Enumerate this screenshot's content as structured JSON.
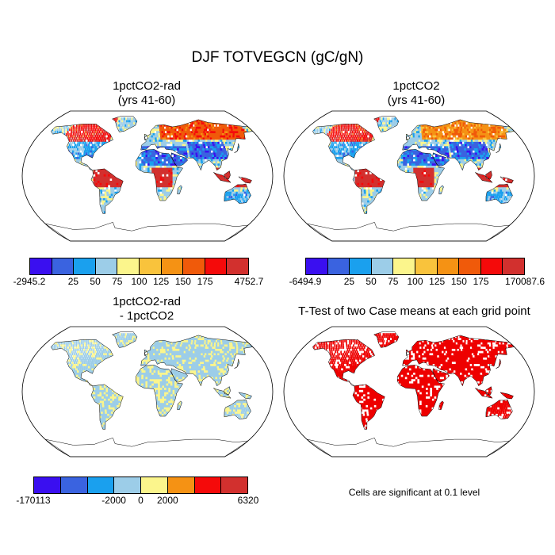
{
  "title": "DJF TOTVEGCN (gC/gN)",
  "colors": {
    "c10": [
      "#3a0ff0",
      "#3a63e0",
      "#1aa0ee",
      "#9ccde8",
      "#fbf58c",
      "#f9c33c",
      "#f59214",
      "#f05a0a",
      "#f50a0a",
      "#d2302e"
    ],
    "c8": [
      "#3a0ff0",
      "#3a63e0",
      "#1aa0ee",
      "#9ccde8",
      "#fbf58c",
      "#f59214",
      "#f50a0a",
      "#d2302e"
    ],
    "ocean": "#ffffff",
    "sig": "#ee0000"
  },
  "panels": [
    {
      "title1": "1pctCO2-rad",
      "title2": "(yrs 41-60)",
      "colorbar": {
        "labels": [
          "-2945.2",
          "25",
          "50",
          "75",
          "100",
          "125",
          "150",
          "175",
          "4752.7"
        ]
      }
    },
    {
      "title1": "1pctCO2",
      "title2": "(yrs 41-60)",
      "colorbar": {
        "labels": [
          "-6494.9",
          "25",
          "50",
          "75",
          "100",
          "125",
          "150",
          "175",
          "170087.6"
        ]
      }
    },
    {
      "title1": "1pctCO2-rad",
      "title2": "- 1pctCO2",
      "colorbar": {
        "labels": [
          "-170113",
          "-2000",
          "0",
          "2000",
          "6320"
        ]
      }
    },
    {
      "title1": "T-Test of two Case means at each grid point",
      "note": "Cells are significant at 0.1 level"
    }
  ]
}
